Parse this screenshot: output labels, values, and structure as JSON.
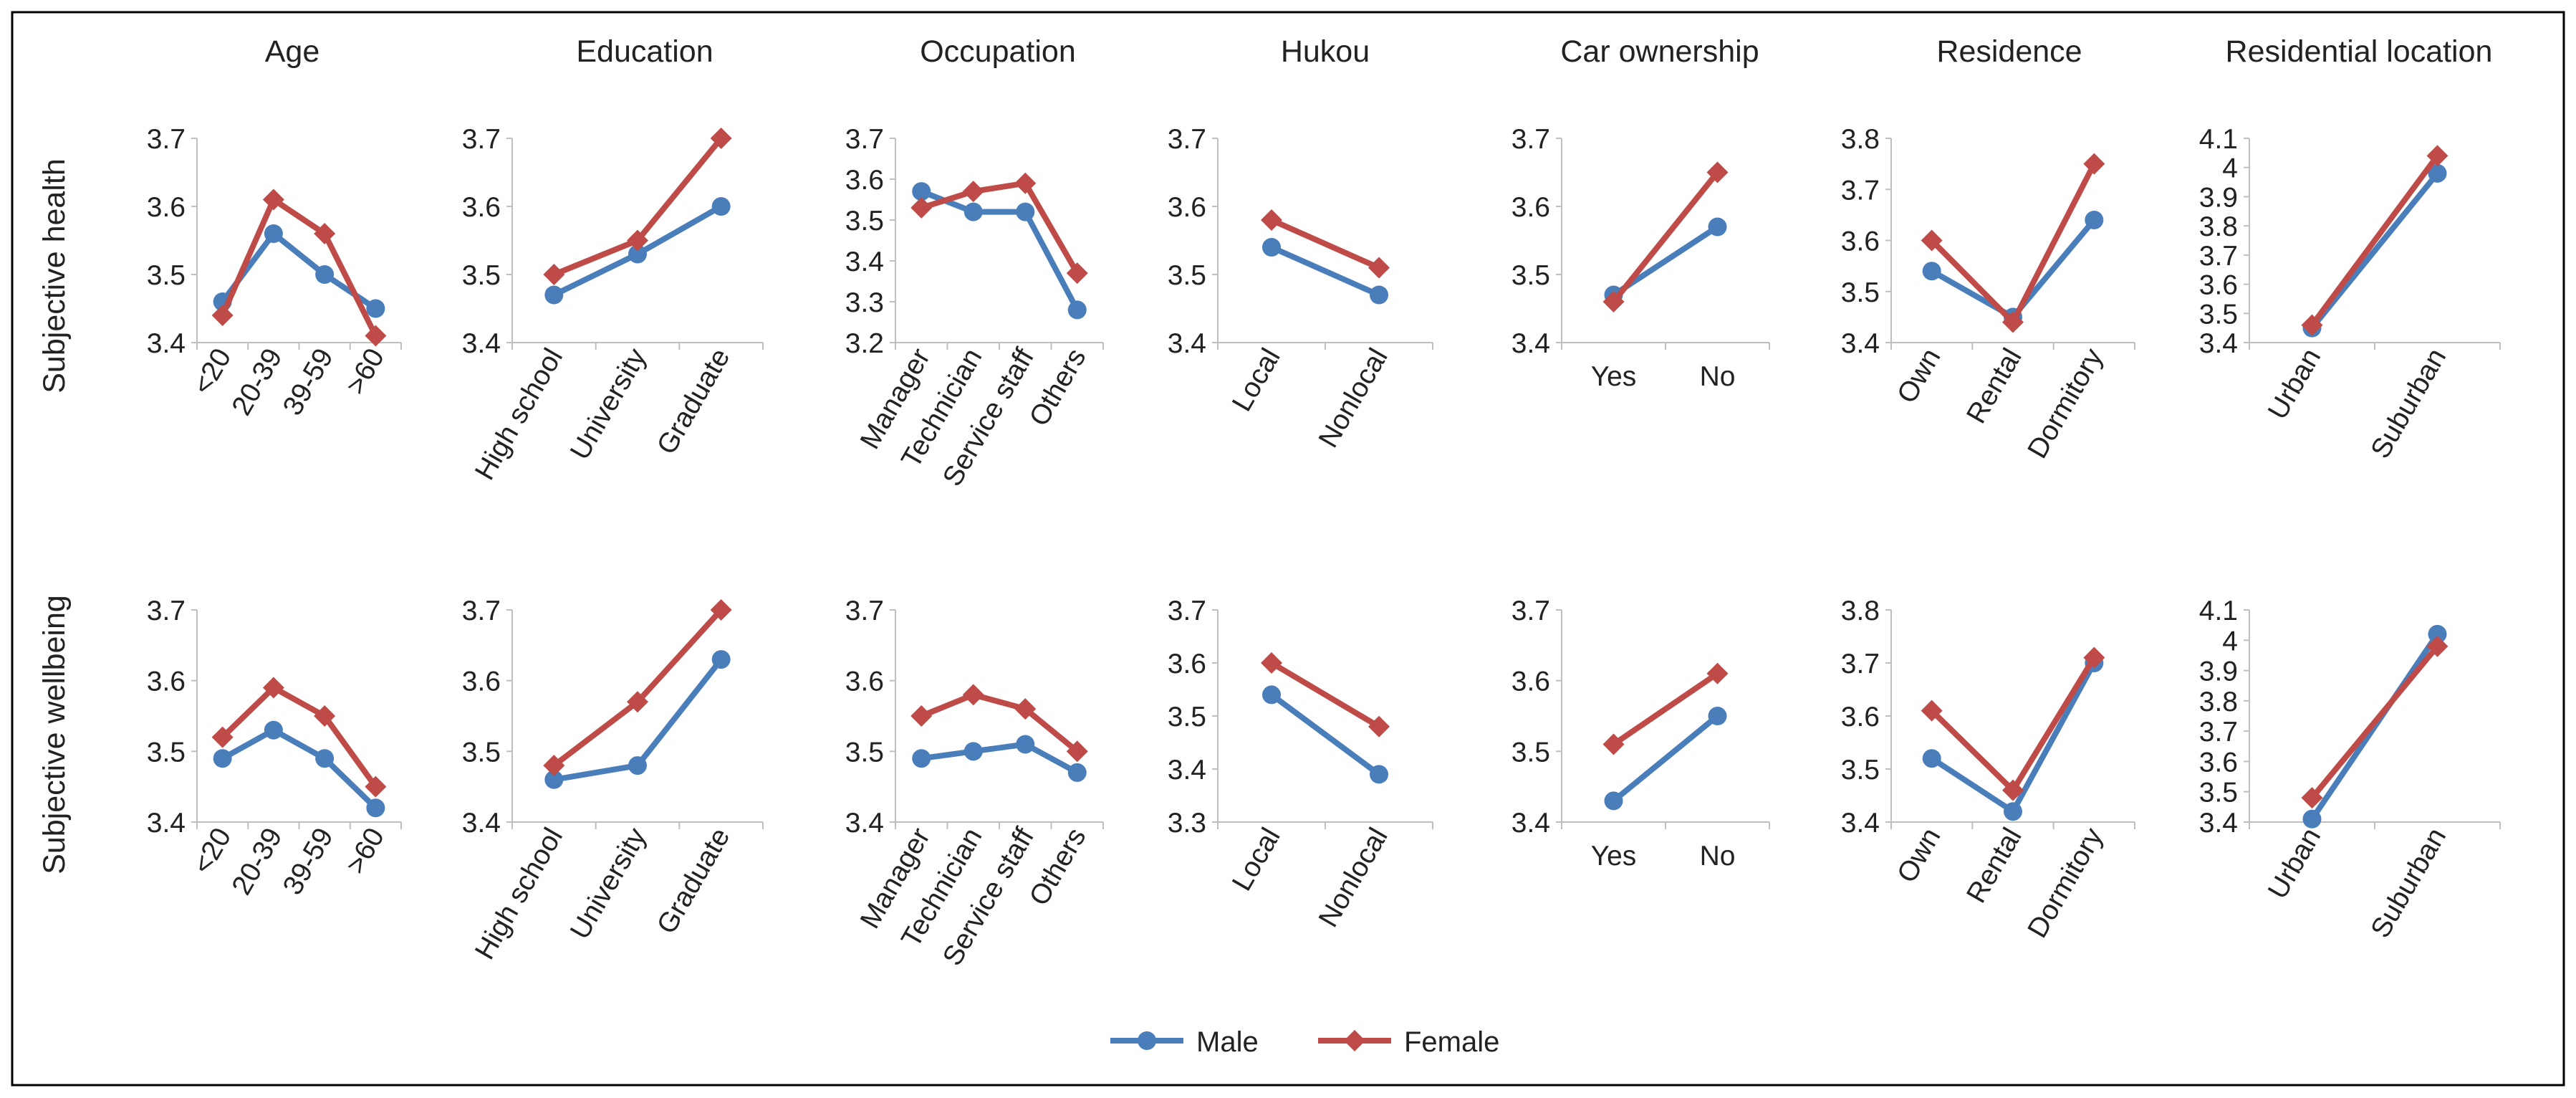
{
  "colors": {
    "male": "#4A7EBB",
    "female": "#BE4B48",
    "axis": "#BFBFBF",
    "text": "#222222",
    "frame": "#000000"
  },
  "legend": {
    "male": "Male",
    "female": "Female"
  },
  "row_labels": [
    "Subjective health",
    "Subjective wellbeing"
  ],
  "column_titles": [
    "Age",
    "Education",
    "Occupation",
    "Hukou",
    "Car ownership",
    "Residence",
    "Residential location"
  ],
  "chart_data": [
    {
      "type": "line",
      "row": 0,
      "col": 0,
      "title": "Age",
      "ylabel": "Subjective health",
      "categories": [
        "<20",
        "20-39",
        "39-59",
        ">60"
      ],
      "ylim": [
        3.4,
        3.7
      ],
      "yticks": [
        "3.4",
        "3.5",
        "3.6",
        "3.7"
      ],
      "rotate": true,
      "series": [
        {
          "name": "Male",
          "values": [
            3.46,
            3.56,
            3.5,
            3.45
          ]
        },
        {
          "name": "Female",
          "values": [
            3.44,
            3.61,
            3.56,
            3.41
          ]
        }
      ]
    },
    {
      "type": "line",
      "row": 0,
      "col": 1,
      "title": "Education",
      "ylabel": "Subjective health",
      "categories": [
        "High school",
        "University",
        "Graduate"
      ],
      "ylim": [
        3.4,
        3.7
      ],
      "yticks": [
        "3.4",
        "3.5",
        "3.6",
        "3.7"
      ],
      "rotate": true,
      "series": [
        {
          "name": "Male",
          "values": [
            3.47,
            3.53,
            3.6
          ]
        },
        {
          "name": "Female",
          "values": [
            3.5,
            3.55,
            3.7
          ]
        }
      ]
    },
    {
      "type": "line",
      "row": 0,
      "col": 2,
      "title": "Occupation",
      "ylabel": "Subjective health",
      "categories": [
        "Manager",
        "Technician",
        "Service staff",
        "Others"
      ],
      "ylim": [
        3.2,
        3.7
      ],
      "yticks": [
        "3.2",
        "3.3",
        "3.4",
        "3.5",
        "3.6",
        "3.7"
      ],
      "rotate": true,
      "series": [
        {
          "name": "Male",
          "values": [
            3.57,
            3.52,
            3.52,
            3.28
          ]
        },
        {
          "name": "Female",
          "values": [
            3.53,
            3.57,
            3.59,
            3.37
          ]
        }
      ]
    },
    {
      "type": "line",
      "row": 0,
      "col": 3,
      "title": "Hukou",
      "ylabel": "Subjective health",
      "categories": [
        "Local",
        "Nonlocal"
      ],
      "ylim": [
        3.4,
        3.7
      ],
      "yticks": [
        "3.4",
        "3.5",
        "3.6",
        "3.7"
      ],
      "rotate": true,
      "series": [
        {
          "name": "Male",
          "values": [
            3.54,
            3.47
          ]
        },
        {
          "name": "Female",
          "values": [
            3.58,
            3.51
          ]
        }
      ]
    },
    {
      "type": "line",
      "row": 0,
      "col": 4,
      "title": "Car ownership",
      "ylabel": "Subjective health",
      "categories": [
        "Yes",
        "No"
      ],
      "ylim": [
        3.4,
        3.7
      ],
      "yticks": [
        "3.4",
        "3.5",
        "3.6",
        "3.7"
      ],
      "rotate": false,
      "series": [
        {
          "name": "Male",
          "values": [
            3.47,
            3.57
          ]
        },
        {
          "name": "Female",
          "values": [
            3.46,
            3.65
          ]
        }
      ]
    },
    {
      "type": "line",
      "row": 0,
      "col": 5,
      "title": "Residence",
      "ylabel": "Subjective health",
      "categories": [
        "Own",
        "Rental",
        "Dormitory"
      ],
      "ylim": [
        3.4,
        3.8
      ],
      "yticks": [
        "3.4",
        "3.5",
        "3.6",
        "3.7",
        "3.8"
      ],
      "rotate": true,
      "series": [
        {
          "name": "Male",
          "values": [
            3.54,
            3.45,
            3.64
          ]
        },
        {
          "name": "Female",
          "values": [
            3.6,
            3.44,
            3.75
          ]
        }
      ]
    },
    {
      "type": "line",
      "row": 0,
      "col": 6,
      "title": "Residential location",
      "ylabel": "Subjective health",
      "categories": [
        "Urban",
        "Suburban"
      ],
      "ylim": [
        3.4,
        4.1
      ],
      "yticks": [
        "3.4",
        "3.5",
        "3.6",
        "3.7",
        "3.8",
        "3.9",
        "4",
        "4.1"
      ],
      "rotate": true,
      "series": [
        {
          "name": "Male",
          "values": [
            3.45,
            3.98
          ]
        },
        {
          "name": "Female",
          "values": [
            3.46,
            4.04
          ]
        }
      ]
    },
    {
      "type": "line",
      "row": 1,
      "col": 0,
      "title": "Age",
      "ylabel": "Subjective wellbeing",
      "categories": [
        "<20",
        "20-39",
        "39-59",
        ">60"
      ],
      "ylim": [
        3.4,
        3.7
      ],
      "yticks": [
        "3.4",
        "3.5",
        "3.6",
        "3.7"
      ],
      "rotate": true,
      "series": [
        {
          "name": "Male",
          "values": [
            3.49,
            3.53,
            3.49,
            3.42
          ]
        },
        {
          "name": "Female",
          "values": [
            3.52,
            3.59,
            3.55,
            3.45
          ]
        }
      ]
    },
    {
      "type": "line",
      "row": 1,
      "col": 1,
      "title": "Education",
      "ylabel": "Subjective wellbeing",
      "categories": [
        "High school",
        "University",
        "Graduate"
      ],
      "ylim": [
        3.4,
        3.7
      ],
      "yticks": [
        "3.4",
        "3.5",
        "3.6",
        "3.7"
      ],
      "rotate": true,
      "series": [
        {
          "name": "Male",
          "values": [
            3.46,
            3.48,
            3.63
          ]
        },
        {
          "name": "Female",
          "values": [
            3.48,
            3.57,
            3.7
          ]
        }
      ]
    },
    {
      "type": "line",
      "row": 1,
      "col": 2,
      "title": "Occupation",
      "ylabel": "Subjective wellbeing",
      "categories": [
        "Manager",
        "Technician",
        "Service staff",
        "Others"
      ],
      "ylim": [
        3.4,
        3.7
      ],
      "yticks": [
        "3.4",
        "3.5",
        "3.6",
        "3.7"
      ],
      "rotate": true,
      "series": [
        {
          "name": "Male",
          "values": [
            3.49,
            3.5,
            3.51,
            3.47
          ]
        },
        {
          "name": "Female",
          "values": [
            3.55,
            3.58,
            3.56,
            3.5
          ]
        }
      ]
    },
    {
      "type": "line",
      "row": 1,
      "col": 3,
      "title": "Hukou",
      "ylabel": "Subjective wellbeing",
      "categories": [
        "Local",
        "Nonlocal"
      ],
      "ylim": [
        3.3,
        3.7
      ],
      "yticks": [
        "3.3",
        "3.4",
        "3.5",
        "3.6",
        "3.7"
      ],
      "rotate": true,
      "series": [
        {
          "name": "Male",
          "values": [
            3.54,
            3.39
          ]
        },
        {
          "name": "Female",
          "values": [
            3.6,
            3.48
          ]
        }
      ]
    },
    {
      "type": "line",
      "row": 1,
      "col": 4,
      "title": "Car ownership",
      "ylabel": "Subjective wellbeing",
      "categories": [
        "Yes",
        "No"
      ],
      "ylim": [
        3.4,
        3.7
      ],
      "yticks": [
        "3.4",
        "3.5",
        "3.6",
        "3.7"
      ],
      "rotate": false,
      "series": [
        {
          "name": "Male",
          "values": [
            3.43,
            3.55
          ]
        },
        {
          "name": "Female",
          "values": [
            3.51,
            3.61
          ]
        }
      ]
    },
    {
      "type": "line",
      "row": 1,
      "col": 5,
      "title": "Residence",
      "ylabel": "Subjective wellbeing",
      "categories": [
        "Own",
        "Rental",
        "Dormitory"
      ],
      "ylim": [
        3.4,
        3.8
      ],
      "yticks": [
        "3.4",
        "3.5",
        "3.6",
        "3.7",
        "3.8"
      ],
      "rotate": true,
      "series": [
        {
          "name": "Male",
          "values": [
            3.52,
            3.42,
            3.7
          ]
        },
        {
          "name": "Female",
          "values": [
            3.61,
            3.46,
            3.71
          ]
        }
      ]
    },
    {
      "type": "line",
      "row": 1,
      "col": 6,
      "title": "Residential location",
      "ylabel": "Subjective wellbeing",
      "categories": [
        "Urban",
        "Suburban"
      ],
      "ylim": [
        3.4,
        4.1
      ],
      "yticks": [
        "3.4",
        "3.5",
        "3.6",
        "3.7",
        "3.8",
        "3.9",
        "4",
        "4.1"
      ],
      "rotate": true,
      "series": [
        {
          "name": "Male",
          "values": [
            3.41,
            4.02
          ]
        },
        {
          "name": "Female",
          "values": [
            3.48,
            3.98
          ]
        }
      ]
    }
  ]
}
